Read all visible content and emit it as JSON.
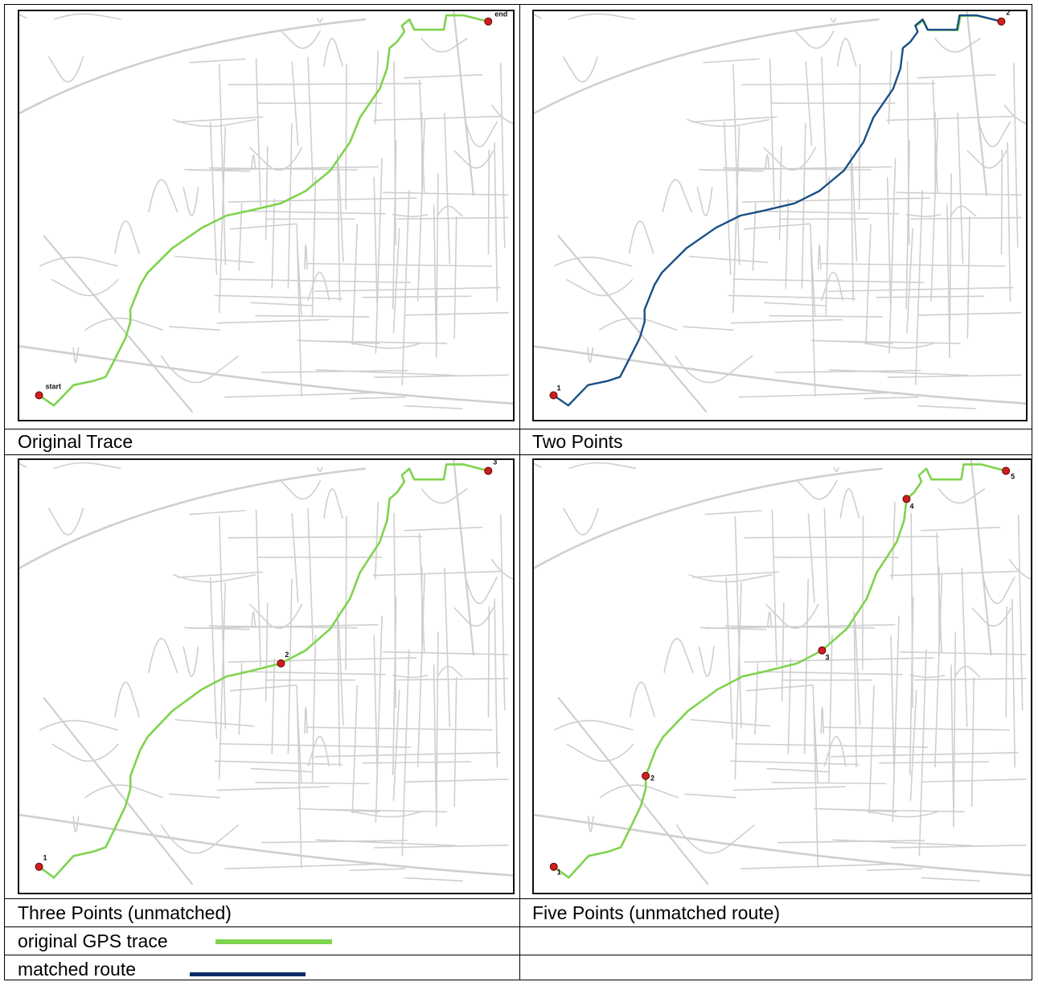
{
  "panels": [
    {
      "id": "original",
      "caption": "Original Trace",
      "labels": [
        "start",
        "end"
      ],
      "matched": false
    },
    {
      "id": "two",
      "caption": "Two Points",
      "labels": [
        "1",
        "2"
      ],
      "matched": true
    },
    {
      "id": "three",
      "caption": "Three Points (unmatched)",
      "labels": [
        "1",
        "2",
        "3"
      ],
      "matched": false
    },
    {
      "id": "five",
      "caption": "Five Points (unmatched route)",
      "labels": [
        "1",
        "2",
        "3",
        "4",
        "5"
      ],
      "matched": false
    }
  ],
  "legend": {
    "gps_label": "original GPS trace",
    "matched_label": "matched route"
  },
  "colors": {
    "gps_trace": "#7fd34e",
    "matched_route": "#1a4f86",
    "legend_matched": "#0c2d6b",
    "point": "#cc1f1f",
    "roads": "#cfcfcf"
  }
}
